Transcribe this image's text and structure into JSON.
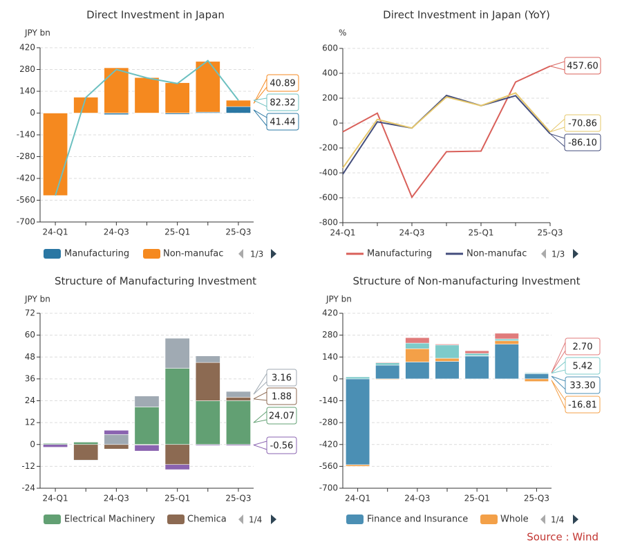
{
  "source": "Source : Wind",
  "chart_data": [
    {
      "type": "bar",
      "title": "Direct Investment in Japan",
      "ylabel": "JPY bn",
      "ylim": [
        -700,
        420
      ],
      "yticks": [
        "420",
        "280",
        "140",
        "0",
        "-140",
        "-280",
        "-420",
        "-560",
        "-700"
      ],
      "x_labels": [
        "24-Q1",
        "",
        "24-Q3",
        "",
        "25-Q1",
        "",
        "25-Q3"
      ],
      "grid": true,
      "series": [
        {
          "name": "Manufacturing",
          "kind": "bar",
          "color": "#2a77a3",
          "values": [
            2,
            -3,
            -10,
            0,
            -8,
            6,
            41.44
          ]
        },
        {
          "name": "Non-manufac",
          "kind": "bar",
          "color": "#f5891f",
          "values": [
            -530,
            102,
            291,
            228,
            195,
            326,
            40.89
          ]
        },
        {
          "kind": "line",
          "color": "#6cc0c0",
          "values": [
            -530,
            100,
            280,
            226,
            190,
            337,
            82.32
          ]
        }
      ],
      "end_labels": [
        {
          "text": "40.89",
          "series": 1
        },
        {
          "text": "82.32",
          "series": 2
        },
        {
          "text": "41.44",
          "series": 0
        }
      ],
      "legend": {
        "page": "1/3"
      }
    },
    {
      "type": "line",
      "title": "Direct Investment in Japan (YoY)",
      "ylabel": "%",
      "ylim": [
        -800,
        600
      ],
      "yticks": [
        "600",
        "400",
        "200",
        "0",
        "-200",
        "-400",
        "-600",
        "-800"
      ],
      "x_labels": [
        "24-Q1",
        "",
        "24-Q3",
        "",
        "25-Q1",
        "",
        "25-Q3"
      ],
      "grid": true,
      "series": [
        {
          "name": "Manufacturing",
          "kind": "line",
          "color": "#d9605a",
          "values": [
            -70,
            80,
            -595,
            -230,
            -225,
            330,
            457.6
          ]
        },
        {
          "name": "Non-manufac",
          "kind": "line",
          "color": "#434d7c",
          "values": [
            -410,
            10,
            -40,
            222,
            140,
            220,
            -86.1
          ]
        },
        {
          "kind": "line",
          "color": "#e6c76a",
          "values": [
            -360,
            30,
            -40,
            210,
            140,
            242,
            -70.86
          ]
        }
      ],
      "end_labels": [
        {
          "text": "457.60",
          "series": 0
        },
        {
          "text": "-70.86",
          "series": 2
        },
        {
          "text": "-86.10",
          "series": 1
        }
      ],
      "legend": {
        "page": "1/3"
      }
    },
    {
      "type": "bar",
      "title": "Structure of Manufacturing Investment",
      "ylabel": "JPY bn",
      "ylim": [
        -24,
        72
      ],
      "yticks": [
        "72",
        "60",
        "48",
        "36",
        "24",
        "12",
        "0",
        "-12",
        "-24"
      ],
      "x_labels": [
        "24-Q1",
        "",
        "24-Q3",
        "",
        "25-Q1",
        "",
        "25-Q3"
      ],
      "grid": true,
      "series": [
        {
          "name": "Electrical Machinery",
          "kind": "bar",
          "color": "#62a073",
          "values": [
            0.6,
            1.5,
            0,
            20.6,
            41.8,
            24,
            24.07
          ]
        },
        {
          "name": "Chemica",
          "kind": "bar",
          "color": "#8c6a52",
          "values": [
            0.3,
            -8.6,
            -2.5,
            -0.3,
            -11,
            21,
            1.88
          ]
        },
        {
          "kind": "bar",
          "color": "#a0aab3",
          "values": [
            0,
            -0.3,
            5.5,
            6,
            16.5,
            3.6,
            3.16
          ]
        },
        {
          "kind": "bar",
          "color": "#8a63b0",
          "values": [
            -1.5,
            0,
            2.3,
            -3.3,
            -2.8,
            -0.5,
            -0.56
          ]
        }
      ],
      "end_labels": [
        {
          "text": "3.16",
          "series": 2
        },
        {
          "text": "1.88",
          "series": 1
        },
        {
          "text": "24.07",
          "series": 0
        },
        {
          "text": "-0.56",
          "series": 3
        }
      ],
      "legend": {
        "page": "1/4"
      }
    },
    {
      "type": "bar",
      "title": "Structure of Non-manufacturing Investment",
      "ylabel": "JPY bn",
      "ylim": [
        -700,
        420
      ],
      "yticks": [
        "420",
        "280",
        "140",
        "0",
        "-140",
        "-280",
        "-420",
        "-560",
        "-700"
      ],
      "x_labels": [
        "24-Q1",
        "",
        "24-Q3",
        "",
        "25-Q1",
        "",
        "25-Q3"
      ],
      "grid": true,
      "series": [
        {
          "name": "Finance and Insurance",
          "kind": "bar",
          "color": "#4b8fb4",
          "values": [
            -550,
            88,
            108,
            112,
            148,
            222,
            33.3
          ]
        },
        {
          "name": "Whole",
          "kind": "bar",
          "color": "#f3a048",
          "values": [
            -10,
            -4,
            85,
            20,
            0,
            22,
            -16.81
          ]
        },
        {
          "kind": "bar",
          "color": "#7ecbca",
          "values": [
            15,
            15,
            36,
            85,
            15,
            12,
            5.42
          ]
        },
        {
          "kind": "bar",
          "color": "#e07b7b",
          "values": [
            0,
            4,
            35,
            6,
            17,
            36,
            2.7
          ]
        }
      ],
      "end_labels": [
        {
          "text": "2.70",
          "series": 3
        },
        {
          "text": "5.42",
          "series": 2
        },
        {
          "text": "33.30",
          "series": 0
        },
        {
          "text": "-16.81",
          "series": 1
        }
      ],
      "legend": {
        "page": "1/4"
      }
    }
  ]
}
